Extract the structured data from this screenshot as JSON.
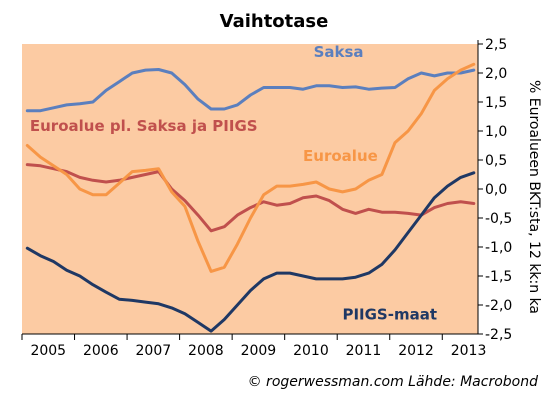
{
  "chart_data": {
    "type": "line",
    "title": "Vaihtotase",
    "ylabel": "% Euroalueen BKT:sta, 12 kk:n ka",
    "ylim": [
      -2.5,
      2.5
    ],
    "yticks": [
      "2,5",
      "2,0",
      "1,5",
      "1,0",
      "0,5",
      "0,0",
      "-0,5",
      "-1,0",
      "-1,5",
      "-2,0",
      "-2,5"
    ],
    "ytick_values": [
      2.5,
      2.0,
      1.5,
      1.0,
      0.5,
      0.0,
      -0.5,
      -1.0,
      -1.5,
      -2.0,
      -2.5
    ],
    "xlim": [
      2004.9,
      2013.58
    ],
    "xticks": [
      "2005",
      "2006",
      "2007",
      "2008",
      "2009",
      "2010",
      "2011",
      "2012",
      "2013"
    ],
    "xtick_values": [
      2005,
      2006,
      2007,
      2008,
      2009,
      2010,
      2011,
      2012,
      2013
    ],
    "plot_background": "#FCCBA3",
    "credit": "© rogerwessman.com Lähde: Macrobond",
    "series": [
      {
        "name": "Saksa",
        "color": "#5B7FBE",
        "label_color": "#5B7FBE",
        "x": [
          2005.0,
          2005.25,
          2005.5,
          2005.75,
          2006.0,
          2006.25,
          2006.5,
          2006.75,
          2007.0,
          2007.25,
          2007.5,
          2007.75,
          2008.0,
          2008.25,
          2008.5,
          2008.75,
          2009.0,
          2009.25,
          2009.5,
          2009.75,
          2010.0,
          2010.25,
          2010.5,
          2010.75,
          2011.0,
          2011.25,
          2011.5,
          2011.75,
          2012.0,
          2012.25,
          2012.5,
          2012.75,
          2013.0,
          2013.25,
          2013.5
        ],
        "y": [
          1.35,
          1.35,
          1.4,
          1.45,
          1.47,
          1.5,
          1.7,
          1.85,
          2.0,
          2.05,
          2.06,
          2.0,
          1.8,
          1.55,
          1.38,
          1.38,
          1.45,
          1.62,
          1.75,
          1.75,
          1.75,
          1.72,
          1.78,
          1.78,
          1.75,
          1.76,
          1.72,
          1.74,
          1.75,
          1.9,
          2.0,
          1.95,
          2.0,
          2.0,
          2.05
        ]
      },
      {
        "name": "Euroalue pl. Saksa ja PIIGS",
        "color": "#C0504D",
        "label_color": "#C0504D",
        "x": [
          2005.0,
          2005.25,
          2005.5,
          2005.75,
          2006.0,
          2006.25,
          2006.5,
          2006.75,
          2007.0,
          2007.25,
          2007.5,
          2007.75,
          2008.0,
          2008.25,
          2008.5,
          2008.75,
          2009.0,
          2009.25,
          2009.5,
          2009.75,
          2010.0,
          2010.25,
          2010.5,
          2010.75,
          2011.0,
          2011.25,
          2011.5,
          2011.75,
          2012.0,
          2012.25,
          2012.5,
          2012.75,
          2013.0,
          2013.25,
          2013.5
        ],
        "y": [
          0.42,
          0.4,
          0.35,
          0.3,
          0.2,
          0.15,
          0.12,
          0.15,
          0.2,
          0.25,
          0.3,
          0.0,
          -0.2,
          -0.45,
          -0.72,
          -0.65,
          -0.45,
          -0.32,
          -0.22,
          -0.28,
          -0.25,
          -0.15,
          -0.12,
          -0.2,
          -0.35,
          -0.42,
          -0.35,
          -0.4,
          -0.4,
          -0.42,
          -0.45,
          -0.32,
          -0.25,
          -0.22,
          -0.25
        ]
      },
      {
        "name": "Euroalue",
        "color": "#F79646",
        "label_color": "#F79646",
        "x": [
          2005.0,
          2005.25,
          2005.5,
          2005.75,
          2006.0,
          2006.25,
          2006.5,
          2006.75,
          2007.0,
          2007.25,
          2007.5,
          2007.75,
          2008.0,
          2008.25,
          2008.5,
          2008.75,
          2009.0,
          2009.25,
          2009.5,
          2009.75,
          2010.0,
          2010.25,
          2010.5,
          2010.75,
          2011.0,
          2011.25,
          2011.5,
          2011.75,
          2012.0,
          2012.25,
          2012.5,
          2012.75,
          2013.0,
          2013.25,
          2013.5
        ],
        "y": [
          0.75,
          0.55,
          0.4,
          0.25,
          0.0,
          -0.1,
          -0.1,
          0.1,
          0.3,
          0.32,
          0.35,
          -0.05,
          -0.3,
          -0.9,
          -1.42,
          -1.35,
          -0.95,
          -0.5,
          -0.1,
          0.05,
          0.05,
          0.08,
          0.12,
          0.0,
          -0.05,
          0.0,
          0.15,
          0.25,
          0.8,
          1.0,
          1.3,
          1.7,
          1.9,
          2.05,
          2.15
        ]
      },
      {
        "name": "PIIGS-maat",
        "color": "#1F3864",
        "label_color": "#1F3864",
        "x": [
          2005.0,
          2005.25,
          2005.5,
          2005.75,
          2006.0,
          2006.25,
          2006.5,
          2006.75,
          2007.0,
          2007.25,
          2007.5,
          2007.75,
          2008.0,
          2008.25,
          2008.5,
          2008.75,
          2009.0,
          2009.25,
          2009.5,
          2009.75,
          2010.0,
          2010.25,
          2010.5,
          2010.75,
          2011.0,
          2011.25,
          2011.5,
          2011.75,
          2012.0,
          2012.25,
          2012.5,
          2012.75,
          2013.0,
          2013.25,
          2013.5
        ],
        "y": [
          -1.02,
          -1.15,
          -1.25,
          -1.4,
          -1.5,
          -1.65,
          -1.78,
          -1.9,
          -1.92,
          -1.95,
          -1.98,
          -2.05,
          -2.15,
          -2.3,
          -2.45,
          -2.25,
          -2.0,
          -1.75,
          -1.55,
          -1.45,
          -1.45,
          -1.5,
          -1.55,
          -1.55,
          -1.55,
          -1.52,
          -1.45,
          -1.3,
          -1.05,
          -0.75,
          -0.45,
          -0.15,
          0.05,
          0.2,
          0.28
        ]
      }
    ],
    "labels": [
      {
        "series": "Saksa",
        "text": "Saksa",
        "x": 2010.45,
        "y": 2.28,
        "anchor": "start"
      },
      {
        "series": "Euroalue pl. Saksa ja PIIGS",
        "text": "Euroalue pl. Saksa ja PIIGS",
        "x": 2005.05,
        "y": 1.0,
        "anchor": "start"
      },
      {
        "series": "Euroalue",
        "text": "Euroalue",
        "x": 2010.25,
        "y": 0.48,
        "anchor": "start"
      },
      {
        "series": "PIIGS-maat",
        "text": "PIIGS-maat",
        "x": 2011.0,
        "y": -2.25,
        "anchor": "start"
      }
    ]
  }
}
